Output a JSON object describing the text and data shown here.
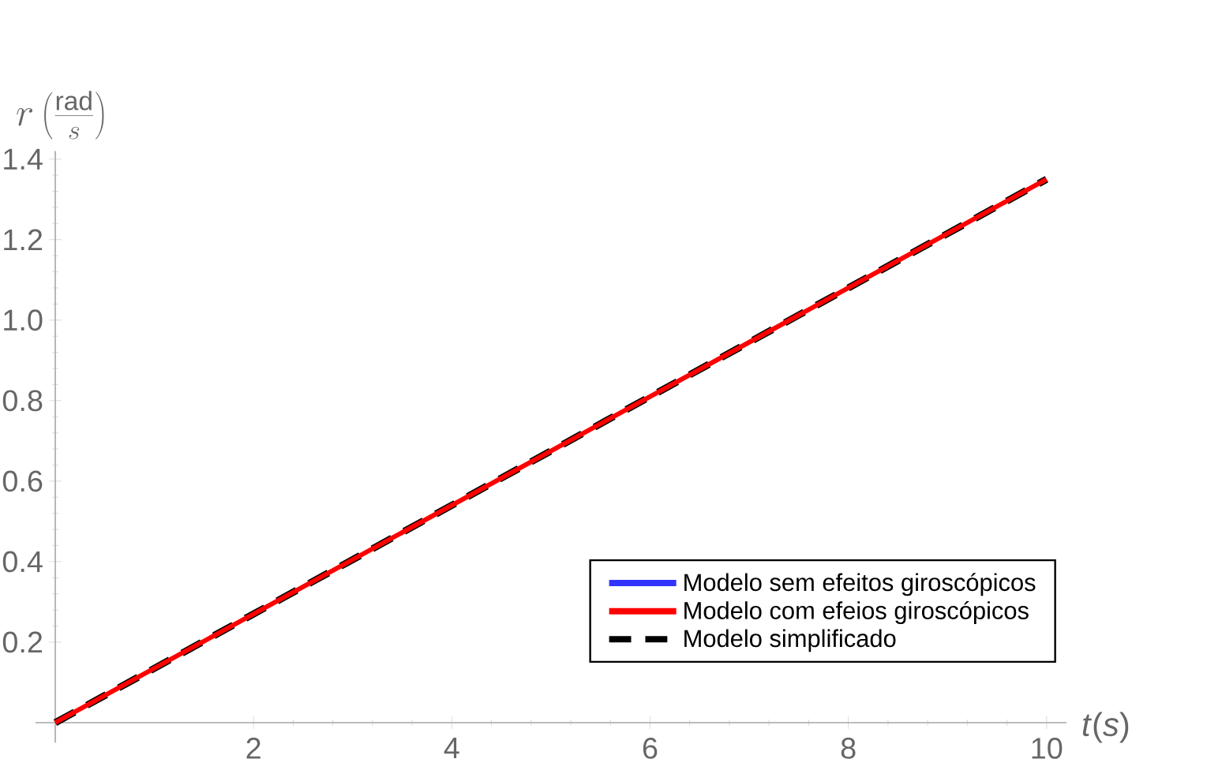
{
  "chart_data": {
    "type": "line",
    "xlabel": "*t*(*s*)",
    "ylabel": "r\\left(\\frac{\\mathrm{rad}}{s}\\right)",
    "x": [
      0,
      2,
      4,
      6,
      8,
      10
    ],
    "series": [
      {
        "name": "Modelo sem efeitos giroscópicos",
        "color": "#3333ff",
        "values": [
          null,
          null,
          null,
          null,
          null,
          null
        ]
      },
      {
        "name": "Modelo com efeios giroscópicos",
        "color": "#ff0000",
        "values": [
          0,
          0.27,
          0.54,
          0.81,
          1.08,
          1.35
        ]
      },
      {
        "name": "Modelo simplificado",
        "color": "#000000",
        "line_style": "dashed",
        "values": [
          0,
          0.27,
          0.54,
          0.81,
          1.08,
          1.35
        ]
      }
    ],
    "xlim": [
      -0.2,
      10.2
    ],
    "ylim": [
      -0.05,
      1.42
    ],
    "xticks": [
      2,
      4,
      6,
      8,
      10
    ],
    "yticks": [
      0.2,
      0.4,
      0.6,
      0.8,
      {
        "value": 1,
        "label": "1.0"
      },
      1.2,
      1.4
    ],
    "grid": false,
    "legend": "right",
    "marker": "none",
    "line_style": "solid"
  }
}
